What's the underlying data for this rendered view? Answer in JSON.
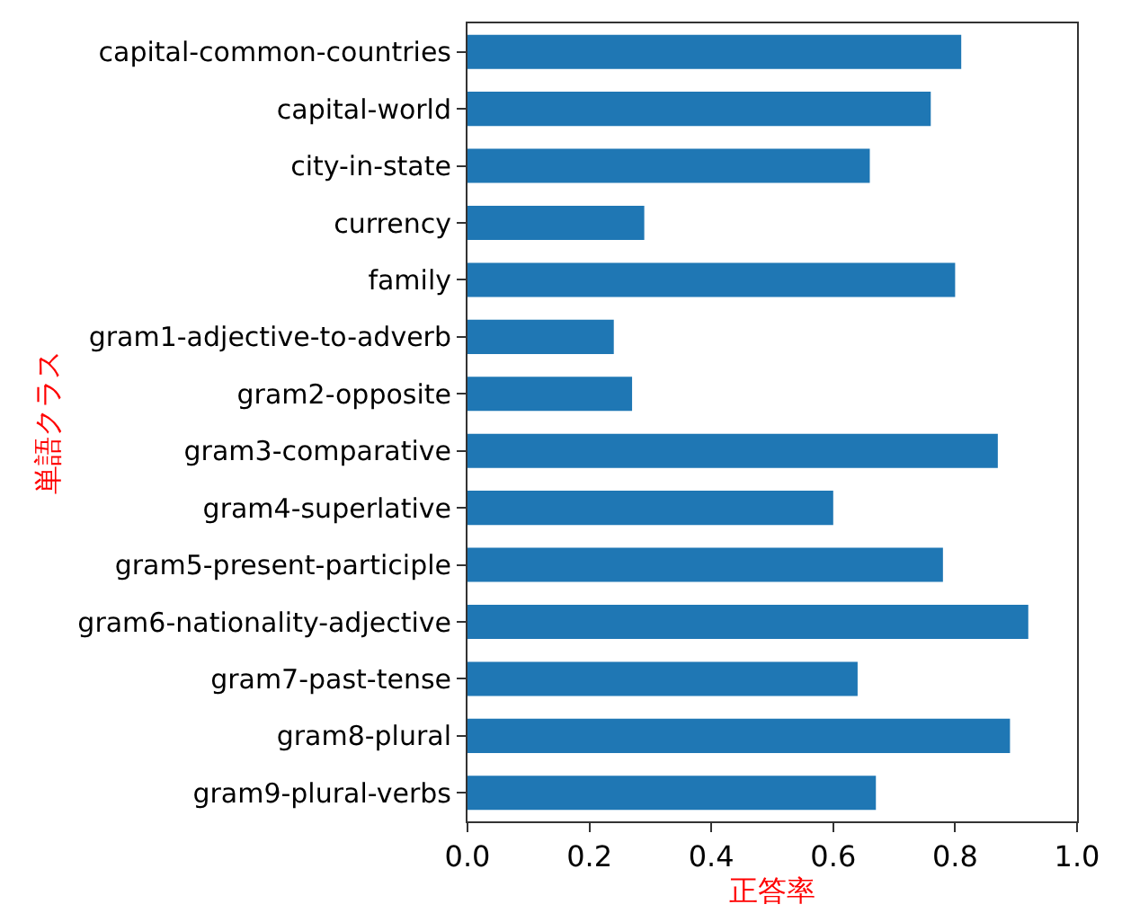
{
  "chart_data": {
    "type": "bar",
    "orientation": "horizontal",
    "xlabel": "正答率",
    "ylabel": "単語クラス",
    "categories": [
      "capital-common-countries",
      "capital-world",
      "city-in-state",
      "currency",
      "family",
      "gram1-adjective-to-adverb",
      "gram2-opposite",
      "gram3-comparative",
      "gram4-superlative",
      "gram5-present-participle",
      "gram6-nationality-adjective",
      "gram7-past-tense",
      "gram8-plural",
      "gram9-plural-verbs"
    ],
    "values": [
      0.81,
      0.76,
      0.66,
      0.29,
      0.8,
      0.24,
      0.27,
      0.87,
      0.6,
      0.78,
      0.92,
      0.64,
      0.89,
      0.67
    ],
    "color": "#1f77b4",
    "xlim": [
      0,
      1
    ],
    "xticks": [
      {
        "value": 0,
        "label": "0.0"
      },
      {
        "value": 0.2,
        "label": "0.2"
      },
      {
        "value": 0.4,
        "label": "0.4"
      },
      {
        "value": 0.6,
        "label": "0.6"
      },
      {
        "value": 0.8,
        "label": "0.8"
      },
      {
        "value": 1,
        "label": "1.0"
      }
    ]
  }
}
